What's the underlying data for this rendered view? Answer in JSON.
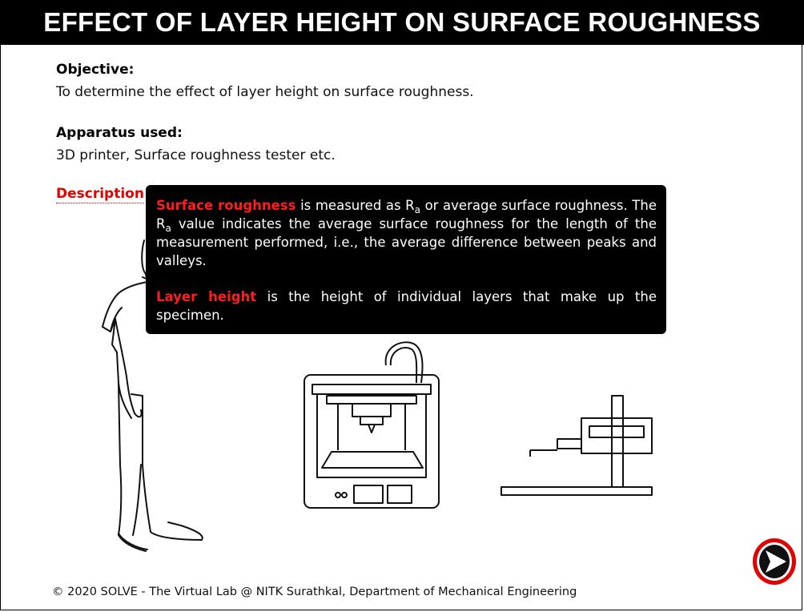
{
  "header": {
    "title": "EFFECT OF LAYER HEIGHT ON SURFACE ROUGHNESS"
  },
  "objective": {
    "heading": "Objective:",
    "text": "To determine the effect of layer height on surface roughness."
  },
  "apparatus": {
    "heading": "Apparatus used:",
    "text": "3D printer, Surface roughness tester etc."
  },
  "description": {
    "label": "Description"
  },
  "tooltip": {
    "p1_term": "Surface roughness",
    "p1_a": " is measured as R",
    "p1_sub1": "a",
    "p1_b": " or average surface roughness. The R",
    "p1_sub2": "a",
    "p1_c": " value indicates the average surface roughness for the length of the measurement performed, i.e., the average difference between peaks and valleys.",
    "p2_term": "Layer height",
    "p2_text": " is the height of individual layers that make up the specimen."
  },
  "footer": {
    "text": "© 2020 SOLVE - The Virtual Lab @ NITK Surathkal, Department of Mechanical Engineering"
  },
  "icons": {
    "next": "next-arrow-icon"
  },
  "colors": {
    "header_bg": "#000000",
    "accent_red": "#e00000",
    "tooltip_bg": "#000000"
  }
}
